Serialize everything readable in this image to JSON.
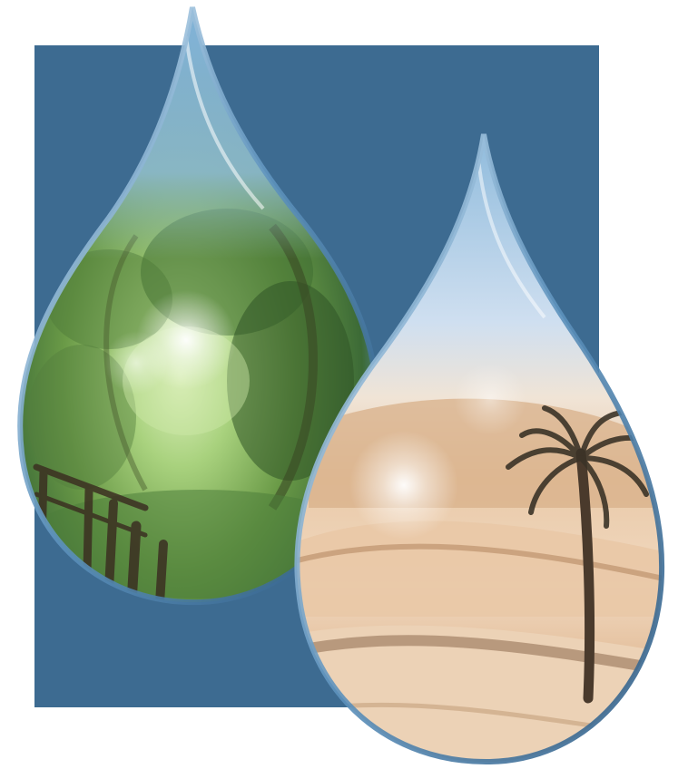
{
  "colors": {
    "background": "#ffffff",
    "panel": "#3d6b91",
    "drop_rim": "#5f93bd",
    "forest_light": "#c9e6a6",
    "forest_mid": "#6f9f4a",
    "forest_dark": "#2f5a2a",
    "desert_light": "#f6e6d4",
    "desert_mid": "#e8c4a2",
    "desert_dark": "#a07a58"
  },
  "scene": {
    "left_drop": "forest-scene",
    "right_drop": "desert-scene"
  }
}
